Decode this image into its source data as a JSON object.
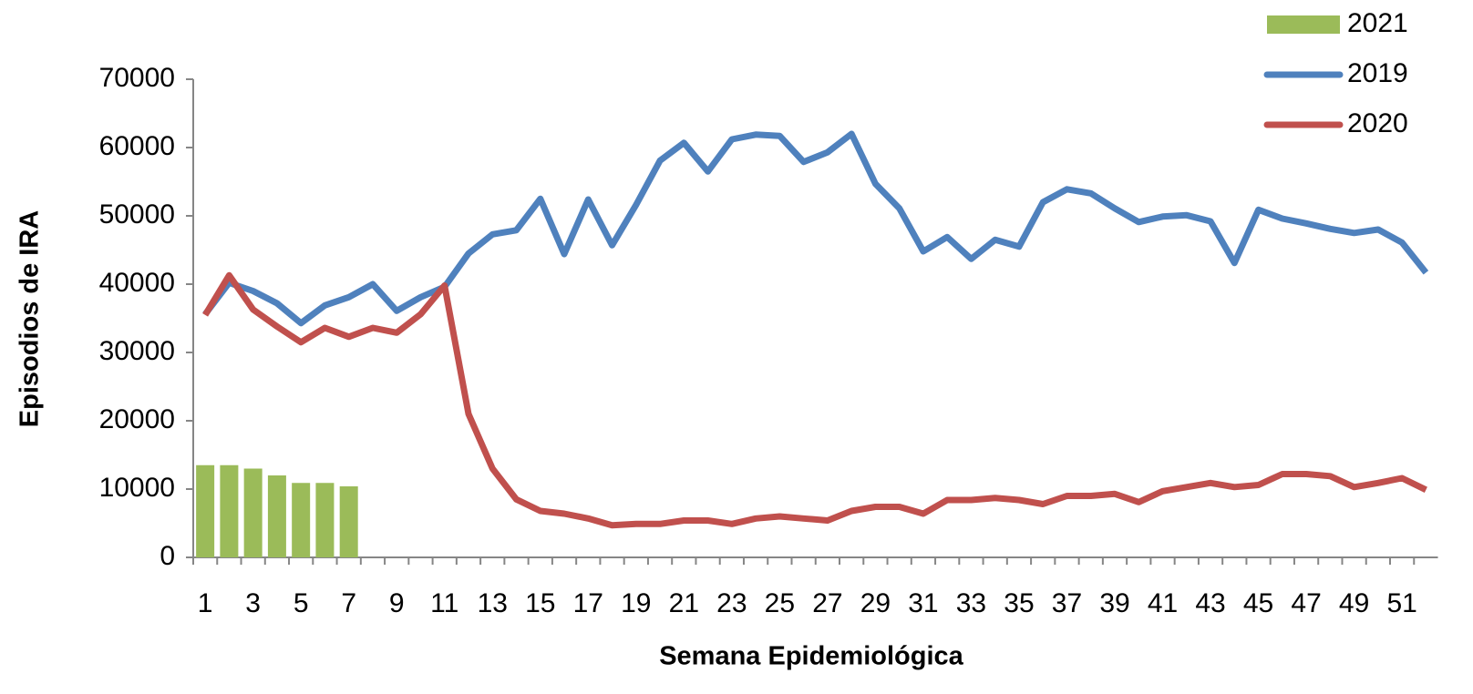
{
  "chart_data": {
    "type": "combo",
    "x_label": "Semana Epidemiológica",
    "y_label": "Episodios de IRA",
    "categories": [
      1,
      null,
      3,
      null,
      5,
      null,
      7,
      null,
      9,
      null,
      11,
      null,
      13,
      null,
      15,
      null,
      17,
      null,
      19,
      null,
      21,
      null,
      23,
      null,
      25,
      null,
      27,
      null,
      29,
      null,
      31,
      null,
      33,
      null,
      35,
      null,
      37,
      null,
      39,
      null,
      41,
      null,
      43,
      null,
      45,
      null,
      47,
      null,
      49,
      null,
      51,
      null
    ],
    "ylim": [
      0,
      70000
    ],
    "yticks": [
      0,
      10000,
      20000,
      30000,
      40000,
      50000,
      60000,
      70000
    ],
    "grid": false,
    "legend": "top-right",
    "series": [
      {
        "name": "2021",
        "type": "bar",
        "color": "#9bbb59",
        "values": [
          13500,
          13500,
          13000,
          12000,
          10900,
          10900,
          10400,
          null,
          null,
          null,
          null,
          null,
          null,
          null,
          null,
          null,
          null,
          null,
          null,
          null,
          null,
          null,
          null,
          null,
          null,
          null,
          null,
          null,
          null,
          null,
          null,
          null,
          null,
          null,
          null,
          null,
          null,
          null,
          null,
          null,
          null,
          null,
          null,
          null,
          null,
          null,
          null,
          null,
          null,
          null,
          null,
          null
        ]
      },
      {
        "name": "2019",
        "type": "line",
        "color": "#4f81bd",
        "values": [
          35600,
          40200,
          39000,
          37200,
          34300,
          36900,
          38100,
          40000,
          36100,
          38100,
          39600,
          44500,
          47300,
          47900,
          52500,
          44400,
          52400,
          45700,
          51600,
          58100,
          60700,
          56500,
          61200,
          61900,
          61700,
          57900,
          59300,
          62000,
          54700,
          51100,
          44800,
          46900,
          43700,
          46500,
          45500,
          52000,
          53900,
          53300,
          51100,
          49100,
          49900,
          50100,
          49200,
          43100,
          50900,
          49600,
          48900,
          48100,
          47500,
          48000,
          46100,
          41700
        ]
      },
      {
        "name": "2020",
        "type": "line",
        "color": "#c0504d",
        "values": [
          35500,
          41300,
          36300,
          33800,
          31500,
          33600,
          32300,
          33600,
          32900,
          35600,
          39800,
          21000,
          13000,
          8500,
          6800,
          6400,
          5700,
          4700,
          4900,
          4900,
          5400,
          5400,
          4900,
          5700,
          6000,
          5700,
          5400,
          6800,
          7400,
          7400,
          6400,
          8400,
          8400,
          8700,
          8400,
          7800,
          9000,
          9000,
          9300,
          8100,
          9700,
          10300,
          10900,
          10300,
          10600,
          12200,
          12200,
          11900,
          10300,
          10900,
          11600,
          9900
        ]
      }
    ]
  }
}
